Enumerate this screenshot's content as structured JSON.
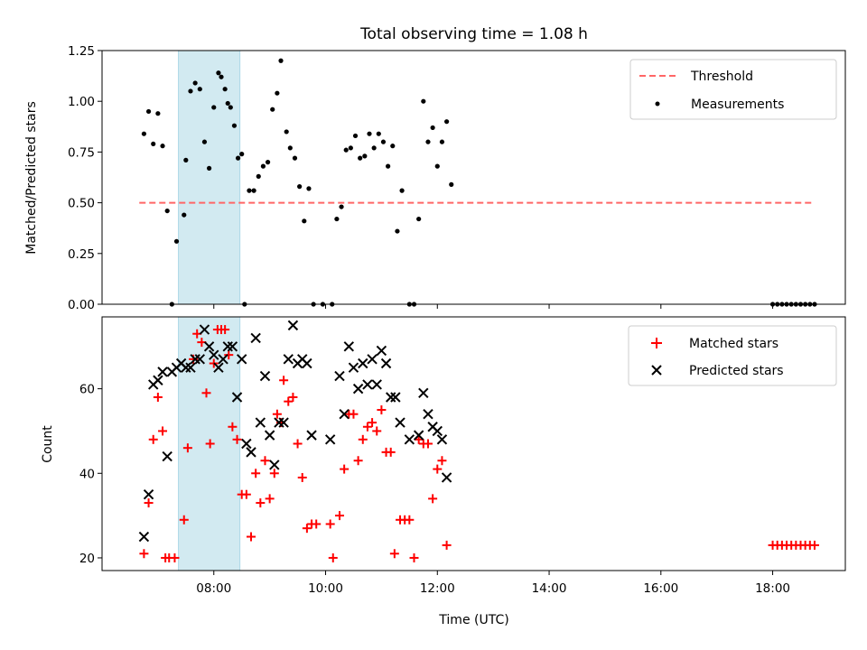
{
  "chart_data": [
    {
      "type": "scatter",
      "title": "Total observing time = 1.08 h",
      "xlabel": "",
      "ylabel": "Matched/Predicted stars",
      "xlim_hours": [
        6.0,
        19.3
      ],
      "ylim": [
        0,
        1.25
      ],
      "yticks": [
        "0.00",
        "0.25",
        "0.50",
        "0.75",
        "1.00",
        "1.25"
      ],
      "grid": false,
      "legend_position": "top-right",
      "highlight_span": {
        "x0": "07:22",
        "x1": "08:28",
        "color": "#add8e6"
      },
      "threshold": {
        "name": "Threshold",
        "value": 0.5,
        "x0": "06:40",
        "x1": "18:45",
        "color": "#ff6666",
        "style": "dashed"
      },
      "series": [
        {
          "name": "Measurements",
          "color": "#000000",
          "marker": "dot",
          "points": [
            [
              "06:45",
              0.84
            ],
            [
              "06:50",
              0.95
            ],
            [
              "06:55",
              0.79
            ],
            [
              "07:00",
              0.94
            ],
            [
              "07:05",
              0.78
            ],
            [
              "07:10",
              0.46
            ],
            [
              "07:15",
              0.0
            ],
            [
              "07:20",
              0.31
            ],
            [
              "07:28",
              0.44
            ],
            [
              "07:30",
              0.71
            ],
            [
              "07:35",
              1.05
            ],
            [
              "07:40",
              1.09
            ],
            [
              "07:45",
              1.06
            ],
            [
              "07:50",
              0.8
            ],
            [
              "07:55",
              0.67
            ],
            [
              "08:00",
              0.97
            ],
            [
              "08:05",
              1.14
            ],
            [
              "08:08",
              1.12
            ],
            [
              "08:12",
              1.06
            ],
            [
              "08:15",
              0.99
            ],
            [
              "08:18",
              0.97
            ],
            [
              "08:22",
              0.88
            ],
            [
              "08:26",
              0.72
            ],
            [
              "08:30",
              0.74
            ],
            [
              "08:33",
              0.0
            ],
            [
              "08:38",
              0.56
            ],
            [
              "08:43",
              0.56
            ],
            [
              "08:48",
              0.63
            ],
            [
              "08:53",
              0.68
            ],
            [
              "08:58",
              0.7
            ],
            [
              "09:03",
              0.96
            ],
            [
              "09:08",
              1.04
            ],
            [
              "09:12",
              1.2
            ],
            [
              "09:18",
              0.85
            ],
            [
              "09:22",
              0.77
            ],
            [
              "09:27",
              0.72
            ],
            [
              "09:32",
              0.58
            ],
            [
              "09:37",
              0.41
            ],
            [
              "09:42",
              0.57
            ],
            [
              "09:47",
              0.0
            ],
            [
              "09:57",
              0.0
            ],
            [
              "10:07",
              0.0
            ],
            [
              "10:12",
              0.42
            ],
            [
              "10:17",
              0.48
            ],
            [
              "10:22",
              0.76
            ],
            [
              "10:27",
              0.77
            ],
            [
              "10:32",
              0.83
            ],
            [
              "10:37",
              0.72
            ],
            [
              "10:42",
              0.73
            ],
            [
              "10:47",
              0.84
            ],
            [
              "10:52",
              0.77
            ],
            [
              "10:57",
              0.84
            ],
            [
              "11:02",
              0.8
            ],
            [
              "11:07",
              0.68
            ],
            [
              "11:12",
              0.78
            ],
            [
              "11:17",
              0.36
            ],
            [
              "11:22",
              0.56
            ],
            [
              "11:30",
              0.0
            ],
            [
              "11:35",
              0.0
            ],
            [
              "11:40",
              0.42
            ],
            [
              "11:45",
              1.0
            ],
            [
              "11:50",
              0.8
            ],
            [
              "11:55",
              0.87
            ],
            [
              "12:00",
              0.68
            ],
            [
              "12:05",
              0.8
            ],
            [
              "12:10",
              0.9
            ],
            [
              "12:15",
              0.59
            ],
            [
              "18:00",
              0.0
            ],
            [
              "18:05",
              0.0
            ],
            [
              "18:10",
              0.0
            ],
            [
              "18:15",
              0.0
            ],
            [
              "18:20",
              0.0
            ],
            [
              "18:25",
              0.0
            ],
            [
              "18:30",
              0.0
            ],
            [
              "18:35",
              0.0
            ],
            [
              "18:40",
              0.0
            ],
            [
              "18:45",
              0.0
            ]
          ]
        }
      ],
      "legend": [
        "Threshold",
        "Measurements"
      ]
    },
    {
      "type": "scatter",
      "title": "",
      "xlabel": "Time (UTC)",
      "ylabel": "Count",
      "xlim_hours": [
        6.0,
        19.3
      ],
      "ylim": [
        17,
        77
      ],
      "yticks": [
        "20",
        "40",
        "60"
      ],
      "xticks": [
        "08:00",
        "10:00",
        "12:00",
        "14:00",
        "16:00",
        "18:00"
      ],
      "grid": false,
      "legend_position": "top-right",
      "highlight_span": {
        "x0": "07:22",
        "x1": "08:28",
        "color": "#add8e6"
      },
      "series": [
        {
          "name": "Matched stars",
          "color": "#ff0000",
          "marker": "plus",
          "points": [
            [
              "06:45",
              21
            ],
            [
              "06:50",
              33
            ],
            [
              "06:55",
              48
            ],
            [
              "07:00",
              58
            ],
            [
              "07:05",
              50
            ],
            [
              "07:08",
              20
            ],
            [
              "07:12",
              20
            ],
            [
              "07:18",
              20
            ],
            [
              "07:28",
              29
            ],
            [
              "07:32",
              46
            ],
            [
              "07:38",
              67
            ],
            [
              "07:42",
              73
            ],
            [
              "07:47",
              71
            ],
            [
              "07:52",
              59
            ],
            [
              "07:56",
              47
            ],
            [
              "08:00",
              66
            ],
            [
              "08:04",
              74
            ],
            [
              "08:08",
              74
            ],
            [
              "08:12",
              74
            ],
            [
              "08:16",
              68
            ],
            [
              "08:20",
              51
            ],
            [
              "08:25",
              48
            ],
            [
              "08:30",
              35
            ],
            [
              "08:35",
              35
            ],
            [
              "08:40",
              25
            ],
            [
              "08:45",
              40
            ],
            [
              "08:50",
              33
            ],
            [
              "08:55",
              43
            ],
            [
              "09:00",
              34
            ],
            [
              "09:05",
              40
            ],
            [
              "09:08",
              54
            ],
            [
              "09:12",
              52
            ],
            [
              "09:15",
              62
            ],
            [
              "09:20",
              57
            ],
            [
              "09:25",
              58
            ],
            [
              "09:30",
              47
            ],
            [
              "09:35",
              39
            ],
            [
              "09:40",
              27
            ],
            [
              "09:45",
              28
            ],
            [
              "09:50",
              28
            ],
            [
              "10:05",
              28
            ],
            [
              "10:08",
              20
            ],
            [
              "10:15",
              30
            ],
            [
              "10:20",
              41
            ],
            [
              "10:25",
              54
            ],
            [
              "10:30",
              54
            ],
            [
              "10:35",
              43
            ],
            [
              "10:40",
              48
            ],
            [
              "10:45",
              51
            ],
            [
              "10:50",
              52
            ],
            [
              "10:55",
              50
            ],
            [
              "11:00",
              55
            ],
            [
              "11:05",
              45
            ],
            [
              "11:10",
              45
            ],
            [
              "11:14",
              21
            ],
            [
              "11:20",
              29
            ],
            [
              "11:25",
              29
            ],
            [
              "11:30",
              29
            ],
            [
              "11:35",
              20
            ],
            [
              "11:40",
              48
            ],
            [
              "11:45",
              47
            ],
            [
              "11:50",
              47
            ],
            [
              "11:55",
              34
            ],
            [
              "12:00",
              41
            ],
            [
              "12:05",
              43
            ],
            [
              "12:10",
              23
            ],
            [
              "18:00",
              23
            ],
            [
              "18:05",
              23
            ],
            [
              "18:10",
              23
            ],
            [
              "18:15",
              23
            ],
            [
              "18:20",
              23
            ],
            [
              "18:25",
              23
            ],
            [
              "18:30",
              23
            ],
            [
              "18:35",
              23
            ],
            [
              "18:40",
              23
            ],
            [
              "18:45",
              23
            ]
          ]
        },
        {
          "name": "Predicted stars",
          "color": "#000000",
          "marker": "x",
          "points": [
            [
              "06:45",
              25
            ],
            [
              "06:50",
              35
            ],
            [
              "06:55",
              61
            ],
            [
              "07:00",
              62
            ],
            [
              "07:05",
              64
            ],
            [
              "07:10",
              44
            ],
            [
              "07:15",
              64
            ],
            [
              "07:20",
              65
            ],
            [
              "07:25",
              66
            ],
            [
              "07:30",
              65
            ],
            [
              "07:35",
              65
            ],
            [
              "07:40",
              67
            ],
            [
              "07:45",
              67
            ],
            [
              "07:50",
              74
            ],
            [
              "07:55",
              70
            ],
            [
              "08:00",
              68
            ],
            [
              "08:05",
              65
            ],
            [
              "08:10",
              67
            ],
            [
              "08:15",
              70
            ],
            [
              "08:20",
              70
            ],
            [
              "08:25",
              58
            ],
            [
              "08:30",
              67
            ],
            [
              "08:35",
              47
            ],
            [
              "08:40",
              45
            ],
            [
              "08:45",
              72
            ],
            [
              "08:50",
              52
            ],
            [
              "08:55",
              63
            ],
            [
              "09:00",
              49
            ],
            [
              "09:05",
              42
            ],
            [
              "09:10",
              52
            ],
            [
              "09:15",
              52
            ],
            [
              "09:20",
              67
            ],
            [
              "09:25",
              75
            ],
            [
              "09:30",
              66
            ],
            [
              "09:35",
              67
            ],
            [
              "09:40",
              66
            ],
            [
              "09:45",
              49
            ],
            [
              "10:05",
              48
            ],
            [
              "10:15",
              63
            ],
            [
              "10:20",
              54
            ],
            [
              "10:25",
              70
            ],
            [
              "10:30",
              65
            ],
            [
              "10:35",
              60
            ],
            [
              "10:40",
              66
            ],
            [
              "10:45",
              61
            ],
            [
              "10:50",
              67
            ],
            [
              "10:55",
              61
            ],
            [
              "11:00",
              69
            ],
            [
              "11:05",
              66
            ],
            [
              "11:10",
              58
            ],
            [
              "11:15",
              58
            ],
            [
              "11:20",
              52
            ],
            [
              "11:30",
              48
            ],
            [
              "11:40",
              49
            ],
            [
              "11:45",
              59
            ],
            [
              "11:50",
              54
            ],
            [
              "11:55",
              51
            ],
            [
              "12:00",
              50
            ],
            [
              "12:05",
              48
            ],
            [
              "12:10",
              39
            ]
          ]
        }
      ],
      "legend": [
        "Matched stars",
        "Predicted stars"
      ]
    }
  ]
}
